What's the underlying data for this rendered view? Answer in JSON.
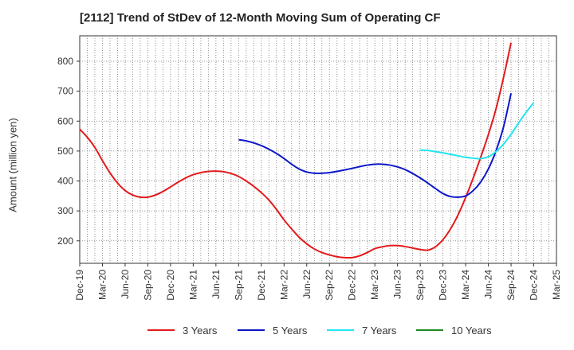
{
  "chart_data": {
    "type": "line",
    "title": "[2112]  Trend of StDev of 12-Month Moving Sum of Operating CF",
    "ylabel": "Amount (million yen)",
    "xlabel": "",
    "ylim": [
      125,
      885
    ],
    "yticks": [
      200,
      300,
      400,
      500,
      600,
      700,
      800
    ],
    "grid": true,
    "legend_position": "bottom",
    "categories": [
      "Dec-19",
      "Mar-20",
      "Jun-20",
      "Sep-20",
      "Dec-20",
      "Mar-21",
      "Jun-21",
      "Sep-21",
      "Dec-21",
      "Mar-22",
      "Jun-22",
      "Sep-22",
      "Dec-22",
      "Mar-23",
      "Jun-23",
      "Sep-23",
      "Dec-23",
      "Mar-24",
      "Jun-24",
      "Sep-24",
      "Dec-24",
      "Mar-25"
    ],
    "series": [
      {
        "name": "3 Years",
        "color": "#e31a1c",
        "points": [
          [
            "Dec-19",
            573
          ],
          [
            "Jan-20",
            546
          ],
          [
            "Feb-20",
            512
          ],
          [
            "Mar-20",
            468
          ],
          [
            "Apr-20",
            427
          ],
          [
            "May-20",
            393
          ],
          [
            "Jun-20",
            368
          ],
          [
            "Jul-20",
            353
          ],
          [
            "Aug-20",
            346
          ],
          [
            "Sep-20",
            346
          ],
          [
            "Oct-20",
            353
          ],
          [
            "Nov-20",
            365
          ],
          [
            "Dec-20",
            380
          ],
          [
            "Jan-21",
            396
          ],
          [
            "Feb-21",
            410
          ],
          [
            "Mar-21",
            421
          ],
          [
            "Apr-21",
            428
          ],
          [
            "May-21",
            432
          ],
          [
            "Jun-21",
            433
          ],
          [
            "Jul-21",
            431
          ],
          [
            "Aug-21",
            425
          ],
          [
            "Sep-21",
            415
          ],
          [
            "Oct-21",
            400
          ],
          [
            "Nov-21",
            382
          ],
          [
            "Dec-21",
            361
          ],
          [
            "Jan-22",
            336
          ],
          [
            "Feb-22",
            305
          ],
          [
            "Mar-22",
            270
          ],
          [
            "Apr-22",
            240
          ],
          [
            "May-22",
            212
          ],
          [
            "Jun-22",
            190
          ],
          [
            "Jul-22",
            173
          ],
          [
            "Aug-22",
            161
          ],
          [
            "Sep-22",
            153
          ],
          [
            "Oct-22",
            147
          ],
          [
            "Nov-22",
            144
          ],
          [
            "Dec-22",
            144
          ],
          [
            "Jan-23",
            150
          ],
          [
            "Feb-23",
            161
          ],
          [
            "Mar-23",
            174
          ],
          [
            "Apr-23",
            180
          ],
          [
            "May-23",
            184
          ],
          [
            "Jun-23",
            184
          ],
          [
            "Jul-23",
            181
          ],
          [
            "Aug-23",
            176
          ],
          [
            "Sep-23",
            171
          ],
          [
            "Oct-23",
            169
          ],
          [
            "Nov-23",
            180
          ],
          [
            "Dec-23",
            204
          ],
          [
            "Jan-24",
            240
          ],
          [
            "Feb-24",
            287
          ],
          [
            "Mar-24",
            345
          ],
          [
            "Apr-24",
            410
          ],
          [
            "May-24",
            480
          ],
          [
            "Jun-24",
            555
          ],
          [
            "Jul-24",
            640
          ],
          [
            "Aug-24",
            745
          ],
          [
            "Sep-24",
            862
          ]
        ]
      },
      {
        "name": "5 Years",
        "color": "#0c17c9",
        "points": [
          [
            "Sep-21",
            538
          ],
          [
            "Oct-21",
            534
          ],
          [
            "Nov-21",
            527
          ],
          [
            "Dec-21",
            518
          ],
          [
            "Jan-22",
            506
          ],
          [
            "Feb-22",
            492
          ],
          [
            "Mar-22",
            475
          ],
          [
            "Apr-22",
            456
          ],
          [
            "May-22",
            440
          ],
          [
            "Jun-22",
            430
          ],
          [
            "Jul-22",
            426
          ],
          [
            "Aug-22",
            426
          ],
          [
            "Sep-22",
            428
          ],
          [
            "Oct-22",
            432
          ],
          [
            "Nov-22",
            437
          ],
          [
            "Dec-22",
            442
          ],
          [
            "Jan-23",
            448
          ],
          [
            "Feb-23",
            453
          ],
          [
            "Mar-23",
            456
          ],
          [
            "Apr-23",
            456
          ],
          [
            "May-23",
            453
          ],
          [
            "Jun-23",
            447
          ],
          [
            "Jul-23",
            438
          ],
          [
            "Aug-23",
            425
          ],
          [
            "Sep-23",
            410
          ],
          [
            "Oct-23",
            393
          ],
          [
            "Nov-23",
            375
          ],
          [
            "Dec-23",
            358
          ],
          [
            "Jan-24",
            348
          ],
          [
            "Feb-24",
            346
          ],
          [
            "Mar-24",
            350
          ],
          [
            "Apr-24",
            368
          ],
          [
            "May-24",
            397
          ],
          [
            "Jun-24",
            440
          ],
          [
            "Jul-24",
            500
          ],
          [
            "Aug-24",
            580
          ],
          [
            "Sep-24",
            693
          ]
        ]
      },
      {
        "name": "7 Years",
        "color": "#22e5f0",
        "points": [
          [
            "Sep-23",
            503
          ],
          [
            "Oct-23",
            502
          ],
          [
            "Nov-23",
            498
          ],
          [
            "Dec-23",
            494
          ],
          [
            "Jan-24",
            489
          ],
          [
            "Feb-24",
            484
          ],
          [
            "Mar-24",
            479
          ],
          [
            "Apr-24",
            476
          ],
          [
            "May-24",
            475
          ],
          [
            "Jun-24",
            481
          ],
          [
            "Jul-24",
            498
          ],
          [
            "Aug-24",
            523
          ],
          [
            "Sep-24",
            556
          ],
          [
            "Oct-24",
            594
          ],
          [
            "Nov-24",
            630
          ],
          [
            "Dec-24",
            662
          ]
        ]
      },
      {
        "name": "10 Years",
        "color": "#1f8a1f",
        "points": []
      }
    ]
  }
}
